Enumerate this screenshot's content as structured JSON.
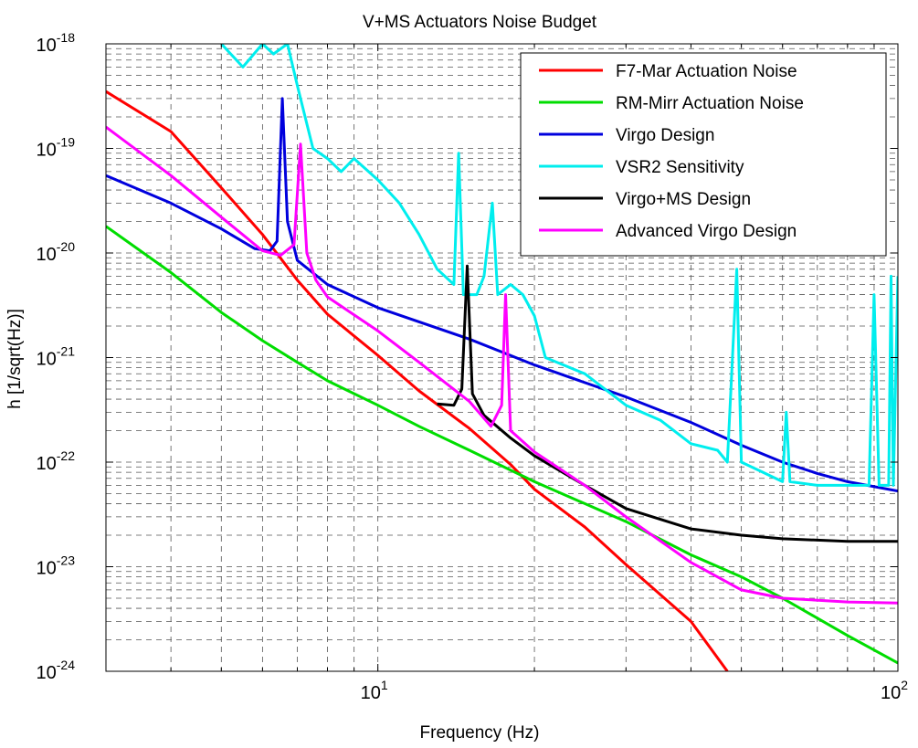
{
  "chart_data": {
    "type": "line",
    "title": "V+MS Actuators Noise Budget",
    "xlabel": "Frequency (Hz)",
    "ylabel": "h [1/sqrt(Hz)]",
    "xscale": "log",
    "yscale": "log",
    "xlim": [
      3,
      100
    ],
    "ylim": [
      1e-24,
      1e-18
    ],
    "grid": true,
    "legend_position": "top-right",
    "x_ticks": [
      {
        "value": 10,
        "base": "10",
        "exp": "1"
      },
      {
        "value": 100,
        "base": "10",
        "exp": "2"
      }
    ],
    "y_ticks": [
      {
        "value": 1e-18,
        "base": "10",
        "exp": "-18"
      },
      {
        "value": 1e-19,
        "base": "10",
        "exp": "-19"
      },
      {
        "value": 1e-20,
        "base": "10",
        "exp": "-20"
      },
      {
        "value": 1e-21,
        "base": "10",
        "exp": "-21"
      },
      {
        "value": 1e-22,
        "base": "10",
        "exp": "-22"
      },
      {
        "value": 1e-23,
        "base": "10",
        "exp": "-23"
      },
      {
        "value": 1e-24,
        "base": "10",
        "exp": "-24"
      }
    ],
    "series": [
      {
        "name": "F7-Mar Actuation Noise",
        "color": "#ff0000",
        "points": [
          [
            3,
            3.5e-19
          ],
          [
            4,
            1.45e-19
          ],
          [
            5,
            4.2e-20
          ],
          [
            6,
            1.5e-20
          ],
          [
            7,
            5.5e-21
          ],
          [
            8,
            2.6e-21
          ],
          [
            10,
            1.05e-21
          ],
          [
            12,
            4.8e-22
          ],
          [
            15,
            2.1e-22
          ],
          [
            18,
            9.5e-23
          ],
          [
            20,
            5.5e-23
          ],
          [
            25,
            2.4e-23
          ],
          [
            30,
            1.05e-23
          ],
          [
            40,
            3e-24
          ],
          [
            47,
            1e-24
          ]
        ]
      },
      {
        "name": "RM-Mirr Actuation Noise",
        "color": "#00dd00",
        "points": [
          [
            3,
            1.8e-20
          ],
          [
            4,
            6.5e-21
          ],
          [
            5,
            2.7e-21
          ],
          [
            6,
            1.45e-21
          ],
          [
            7,
            9e-22
          ],
          [
            8,
            6e-22
          ],
          [
            10,
            3.5e-22
          ],
          [
            12,
            2.2e-22
          ],
          [
            15,
            1.3e-22
          ],
          [
            20,
            6.5e-23
          ],
          [
            30,
            2.7e-23
          ],
          [
            40,
            1.3e-23
          ],
          [
            50,
            8e-24
          ],
          [
            60,
            5e-24
          ],
          [
            80,
            2.2e-24
          ],
          [
            100,
            1.2e-24
          ]
        ]
      },
      {
        "name": "Virgo Design",
        "color": "#0000dd",
        "points": [
          [
            3,
            5.5e-20
          ],
          [
            4,
            3e-20
          ],
          [
            5,
            1.7e-20
          ],
          [
            5.8,
            1.1e-20
          ],
          [
            6.2,
            1.05e-20
          ],
          [
            6.4,
            1.3e-20
          ],
          [
            6.55,
            3e-19
          ],
          [
            6.7,
            2e-20
          ],
          [
            7,
            8.5e-21
          ],
          [
            8,
            5e-21
          ],
          [
            10,
            3e-21
          ],
          [
            15,
            1.5e-21
          ],
          [
            20,
            8.5e-22
          ],
          [
            30,
            4.2e-22
          ],
          [
            40,
            2.4e-22
          ],
          [
            50,
            1.45e-22
          ],
          [
            60,
            1e-22
          ],
          [
            70,
            7.8e-23
          ],
          [
            80,
            6.5e-23
          ],
          [
            100,
            5.3e-23
          ]
        ]
      },
      {
        "name": "VSR2 Sensitivity",
        "color": "#00eeee",
        "points": [
          [
            5,
            1e-18
          ],
          [
            5.5,
            6e-19
          ],
          [
            6,
            1e-18
          ],
          [
            6.3,
            8e-19
          ],
          [
            6.7,
            1e-18
          ],
          [
            7,
            4e-19
          ],
          [
            7.5,
            1e-19
          ],
          [
            8,
            8e-20
          ],
          [
            8.5,
            6e-20
          ],
          [
            9,
            8e-20
          ],
          [
            10,
            5e-20
          ],
          [
            11,
            3e-20
          ],
          [
            12,
            1.5e-20
          ],
          [
            13,
            7e-21
          ],
          [
            14,
            5e-21
          ],
          [
            14.3,
            9e-20
          ],
          [
            14.6,
            4e-21
          ],
          [
            15.5,
            4e-21
          ],
          [
            16,
            6e-21
          ],
          [
            16.6,
            3e-20
          ],
          [
            17,
            4e-21
          ],
          [
            18,
            5e-21
          ],
          [
            19,
            4e-21
          ],
          [
            20,
            2.5e-21
          ],
          [
            21,
            1e-21
          ],
          [
            25,
            7e-22
          ],
          [
            30,
            3.5e-22
          ],
          [
            35,
            2.5e-22
          ],
          [
            40,
            1.5e-22
          ],
          [
            45,
            1.3e-22
          ],
          [
            47,
            1e-22
          ],
          [
            49,
            7e-21
          ],
          [
            50,
            1e-22
          ],
          [
            55,
            8e-23
          ],
          [
            60,
            6.5e-23
          ],
          [
            61,
            3e-22
          ],
          [
            62,
            6.5e-23
          ],
          [
            70,
            6e-23
          ],
          [
            80,
            6e-23
          ],
          [
            88,
            6e-23
          ],
          [
            90,
            4e-21
          ],
          [
            92,
            6e-23
          ],
          [
            96,
            6e-23
          ],
          [
            97,
            6e-21
          ],
          [
            98,
            6e-23
          ],
          [
            100,
            6e-21
          ]
        ]
      },
      {
        "name": "Virgo+MS Design",
        "color": "#000000",
        "points": [
          [
            13,
            3.6e-22
          ],
          [
            14,
            3.5e-22
          ],
          [
            14.5,
            5e-22
          ],
          [
            14.85,
            7.5e-21
          ],
          [
            15.2,
            4.5e-22
          ],
          [
            16,
            2.8e-22
          ],
          [
            18,
            1.7e-22
          ],
          [
            20,
            1.15e-22
          ],
          [
            25,
            6e-23
          ],
          [
            30,
            3.6e-23
          ],
          [
            40,
            2.3e-23
          ],
          [
            50,
            2e-23
          ],
          [
            60,
            1.85e-23
          ],
          [
            80,
            1.75e-23
          ],
          [
            100,
            1.75e-23
          ]
        ]
      },
      {
        "name": "Advanced Virgo Design",
        "color": "#ff00ff",
        "points": [
          [
            3,
            1.6e-19
          ],
          [
            4,
            5.5e-20
          ],
          [
            5,
            2.2e-20
          ],
          [
            6,
            1.05e-20
          ],
          [
            6.5,
            9.5e-21
          ],
          [
            6.9,
            1.2e-20
          ],
          [
            7.1,
            1.1e-19
          ],
          [
            7.3,
            1e-20
          ],
          [
            7.6,
            5.5e-21
          ],
          [
            8,
            3.8e-21
          ],
          [
            10,
            1.8e-21
          ],
          [
            12,
            9e-22
          ],
          [
            15,
            3.8e-22
          ],
          [
            16.5,
            2.2e-22
          ],
          [
            17.3,
            3.5e-22
          ],
          [
            17.6,
            4e-21
          ],
          [
            18,
            2e-22
          ],
          [
            20,
            1.25e-22
          ],
          [
            25,
            6e-23
          ],
          [
            30,
            3e-23
          ],
          [
            40,
            1.1e-23
          ],
          [
            50,
            6e-24
          ],
          [
            60,
            5e-24
          ],
          [
            80,
            4.6e-24
          ],
          [
            100,
            4.5e-24
          ]
        ]
      }
    ]
  }
}
